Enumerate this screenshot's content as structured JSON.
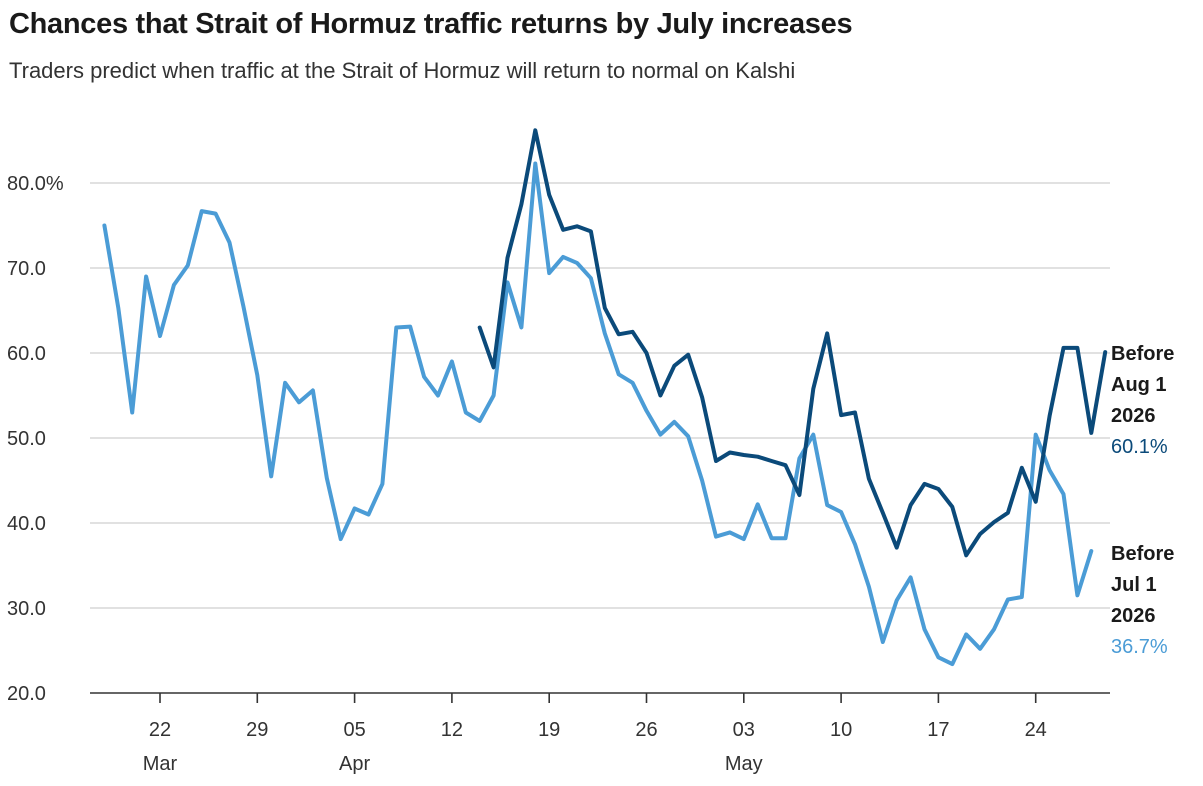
{
  "header": {
    "title": "Chances that Strait of Hormuz traffic returns by July increases",
    "subtitle": "Traders predict when traffic at the Strait of Hormuz will return to normal on Kalshi"
  },
  "colors": {
    "aug": "#0b4a7a",
    "jul": "#4b9cd6",
    "grid": "#cfcfcf",
    "axis": "#333333"
  },
  "chart_data": {
    "type": "line",
    "title": "Chances that Strait of Hormuz traffic returns by July increases",
    "subtitle": "Traders predict when traffic at the Strait of Hormuz will return to normal on Kalshi",
    "xlabel": "",
    "ylabel": "",
    "ylim": [
      20,
      85
    ],
    "yticks": [
      "20.0",
      "30.0",
      "40.0",
      "50.0",
      "60.0",
      "70.0",
      "80.0%"
    ],
    "ytick_values": [
      20,
      30,
      40,
      50,
      60,
      70,
      80
    ],
    "xlim": [
      "2026-03-15",
      "2026-05-28"
    ],
    "xticks": [
      {
        "date": "2026-03-22",
        "day": "22",
        "month": "Mar"
      },
      {
        "date": "2026-03-29",
        "day": "29",
        "month": ""
      },
      {
        "date": "2026-04-05",
        "day": "05",
        "month": "Apr"
      },
      {
        "date": "2026-04-12",
        "day": "12",
        "month": ""
      },
      {
        "date": "2026-04-19",
        "day": "19",
        "month": ""
      },
      {
        "date": "2026-04-26",
        "day": "26",
        "month": ""
      },
      {
        "date": "2026-05-03",
        "day": "03",
        "month": "May"
      },
      {
        "date": "2026-05-10",
        "day": "10",
        "month": ""
      },
      {
        "date": "2026-05-17",
        "day": "17",
        "month": ""
      },
      {
        "date": "2026-05-24",
        "day": "24",
        "month": ""
      }
    ],
    "grid": true,
    "legend": "end-of-line labels at right",
    "series": [
      {
        "name": "Before Aug 1 2026",
        "label_lines": [
          "Before",
          "Aug 1",
          "2026"
        ],
        "last_value_label": "60.1%",
        "color": "#0b4a7a",
        "points": [
          [
            "2026-04-14",
            63.0
          ],
          [
            "2026-04-15",
            58.3
          ],
          [
            "2026-04-16",
            71.2
          ],
          [
            "2026-04-17",
            77.5
          ],
          [
            "2026-04-18",
            86.2
          ],
          [
            "2026-04-19",
            78.6
          ],
          [
            "2026-04-20",
            74.5
          ],
          [
            "2026-04-21",
            74.9
          ],
          [
            "2026-04-22",
            74.3
          ],
          [
            "2026-04-23",
            65.3
          ],
          [
            "2026-04-24",
            62.2
          ],
          [
            "2026-04-25",
            62.5
          ],
          [
            "2026-04-26",
            60.0
          ],
          [
            "2026-04-27",
            55.0
          ],
          [
            "2026-04-28",
            58.5
          ],
          [
            "2026-04-29",
            59.8
          ],
          [
            "2026-04-30",
            54.8
          ],
          [
            "2026-05-01",
            47.3
          ],
          [
            "2026-05-02",
            48.3
          ],
          [
            "2026-05-03",
            48.0
          ],
          [
            "2026-05-04",
            47.8
          ],
          [
            "2026-05-05",
            47.3
          ],
          [
            "2026-05-06",
            46.8
          ],
          [
            "2026-05-07",
            43.3
          ],
          [
            "2026-05-08",
            55.8
          ],
          [
            "2026-05-09",
            62.3
          ],
          [
            "2026-05-10",
            52.7
          ],
          [
            "2026-05-11",
            53.0
          ],
          [
            "2026-05-12",
            45.2
          ],
          [
            "2026-05-13",
            41.2
          ],
          [
            "2026-05-14",
            37.1
          ],
          [
            "2026-05-15",
            42.1
          ],
          [
            "2026-05-16",
            44.6
          ],
          [
            "2026-05-17",
            44.0
          ],
          [
            "2026-05-18",
            41.9
          ],
          [
            "2026-05-19",
            36.2
          ],
          [
            "2026-05-20",
            38.7
          ],
          [
            "2026-05-21",
            40.1
          ],
          [
            "2026-05-22",
            41.2
          ],
          [
            "2026-05-23",
            46.5
          ],
          [
            "2026-05-24",
            42.5
          ],
          [
            "2026-05-25",
            52.6
          ],
          [
            "2026-05-26",
            60.6
          ],
          [
            "2026-05-27",
            60.6
          ],
          [
            "2026-05-28",
            50.6
          ],
          [
            "2026-05-29",
            60.1
          ]
        ]
      },
      {
        "name": "Before Jul 1 2026",
        "label_lines": [
          "Before",
          "Jul 1",
          "2026"
        ],
        "last_value_label": "36.7%",
        "color": "#4b9cd6",
        "points": [
          [
            "2026-03-18",
            75.0
          ],
          [
            "2026-03-19",
            65.3
          ],
          [
            "2026-03-20",
            53.0
          ],
          [
            "2026-03-21",
            69.0
          ],
          [
            "2026-03-22",
            62.0
          ],
          [
            "2026-03-23",
            68.0
          ],
          [
            "2026-03-24",
            70.3
          ],
          [
            "2026-03-25",
            76.7
          ],
          [
            "2026-03-26",
            76.4
          ],
          [
            "2026-03-27",
            73.0
          ],
          [
            "2026-03-28",
            65.5
          ],
          [
            "2026-03-29",
            57.4
          ],
          [
            "2026-03-30",
            45.5
          ],
          [
            "2026-03-31",
            56.5
          ],
          [
            "2026-04-01",
            54.2
          ],
          [
            "2026-04-02",
            55.6
          ],
          [
            "2026-04-03",
            45.3
          ],
          [
            "2026-04-04",
            38.1
          ],
          [
            "2026-04-05",
            41.7
          ],
          [
            "2026-04-06",
            41.0
          ],
          [
            "2026-04-07",
            44.6
          ],
          [
            "2026-04-08",
            63.0
          ],
          [
            "2026-04-09",
            63.1
          ],
          [
            "2026-04-10",
            57.2
          ],
          [
            "2026-04-11",
            55.0
          ],
          [
            "2026-04-12",
            59.0
          ],
          [
            "2026-04-13",
            53.0
          ],
          [
            "2026-04-14",
            52.0
          ],
          [
            "2026-04-15",
            55.0
          ],
          [
            "2026-04-16",
            68.3
          ],
          [
            "2026-04-17",
            63.0
          ],
          [
            "2026-04-18",
            82.3
          ],
          [
            "2026-04-19",
            69.4
          ],
          [
            "2026-04-20",
            71.3
          ],
          [
            "2026-04-21",
            70.6
          ],
          [
            "2026-04-22",
            68.8
          ],
          [
            "2026-04-23",
            62.3
          ],
          [
            "2026-04-24",
            57.5
          ],
          [
            "2026-04-25",
            56.5
          ],
          [
            "2026-04-26",
            53.2
          ],
          [
            "2026-04-27",
            50.4
          ],
          [
            "2026-04-28",
            51.9
          ],
          [
            "2026-04-29",
            50.2
          ],
          [
            "2026-04-30",
            45.0
          ],
          [
            "2026-05-01",
            38.4
          ],
          [
            "2026-05-02",
            38.9
          ],
          [
            "2026-05-03",
            38.1
          ],
          [
            "2026-05-04",
            42.2
          ],
          [
            "2026-05-05",
            38.2
          ],
          [
            "2026-05-06",
            38.2
          ],
          [
            "2026-05-07",
            47.6
          ],
          [
            "2026-05-08",
            50.4
          ],
          [
            "2026-05-09",
            42.1
          ],
          [
            "2026-05-10",
            41.3
          ],
          [
            "2026-05-11",
            37.5
          ],
          [
            "2026-05-12",
            32.5
          ],
          [
            "2026-05-13",
            26.0
          ],
          [
            "2026-05-14",
            30.9
          ],
          [
            "2026-05-15",
            33.6
          ],
          [
            "2026-05-16",
            27.5
          ],
          [
            "2026-05-17",
            24.2
          ],
          [
            "2026-05-18",
            23.4
          ],
          [
            "2026-05-19",
            26.9
          ],
          [
            "2026-05-20",
            25.2
          ],
          [
            "2026-05-21",
            27.5
          ],
          [
            "2026-05-22",
            31.0
          ],
          [
            "2026-05-23",
            31.3
          ],
          [
            "2026-05-24",
            50.4
          ],
          [
            "2026-05-25",
            46.2
          ],
          [
            "2026-05-26",
            43.4
          ],
          [
            "2026-05-27",
            31.5
          ],
          [
            "2026-05-28",
            36.7
          ]
        ]
      }
    ]
  }
}
